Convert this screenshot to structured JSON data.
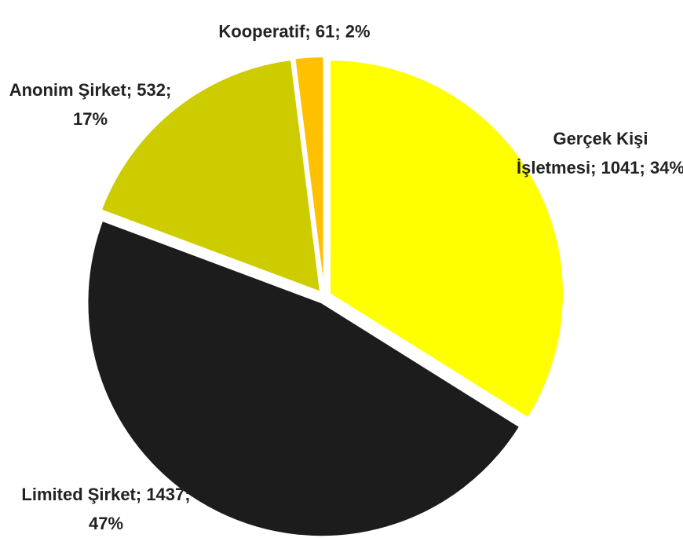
{
  "chart_data": {
    "type": "pie",
    "values": [
      1041,
      1437,
      532,
      61
    ],
    "value_labels": [
      "Gerçek Kişi İşletmesi; 1041; 34%",
      "Limited Şirket; 1437; 47%",
      "Anonim Şirket; 532; 17%",
      "Kooperatif; 61; 2%"
    ],
    "colors": [
      "#ffff00",
      "#1c1c1c",
      "#cccc00",
      "#ffc000"
    ]
  }
}
